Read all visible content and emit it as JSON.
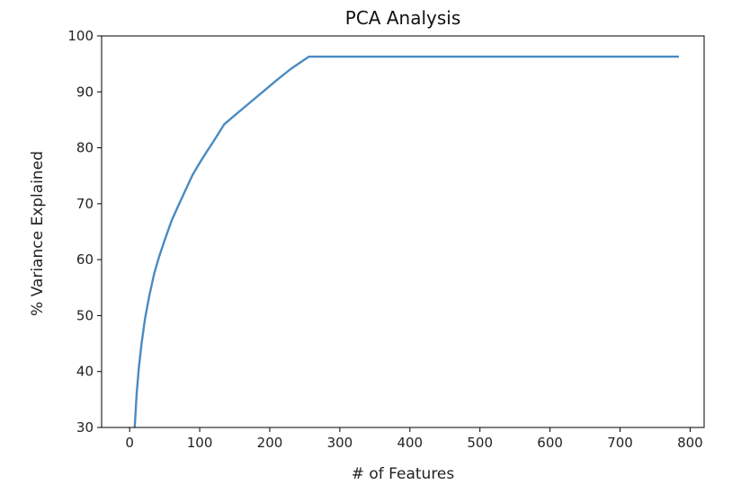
{
  "chart_data": {
    "type": "line",
    "title": "PCA Analysis",
    "xlabel": "# of Features",
    "ylabel": "% Variance Explained",
    "xlim": [
      -40,
      820
    ],
    "ylim": [
      30,
      100
    ],
    "xticks": [
      0,
      100,
      200,
      300,
      400,
      500,
      600,
      700,
      800
    ],
    "yticks": [
      30,
      40,
      50,
      60,
      70,
      80,
      90,
      100
    ],
    "grid": false,
    "series": [
      {
        "color": "#4a8bc2",
        "x": [
          7,
          10,
          13,
          17,
          22,
          28,
          35,
          42,
          50,
          60,
          70,
          80,
          90,
          100,
          110,
          120,
          135,
          150,
          170,
          190,
          210,
          230,
          256,
          300,
          400,
          500,
          600,
          700,
          784
        ],
        "y": [
          29.5,
          36,
          40.5,
          45,
          49.5,
          53.5,
          57.5,
          60.5,
          63.5,
          67,
          69.8,
          72.5,
          75.2,
          77.3,
          79.3,
          81.2,
          84.2,
          85.8,
          87.9,
          90.0,
          92.1,
          94.1,
          96.3,
          96.3,
          96.3,
          96.3,
          96.3,
          96.3,
          96.3
        ]
      }
    ]
  }
}
